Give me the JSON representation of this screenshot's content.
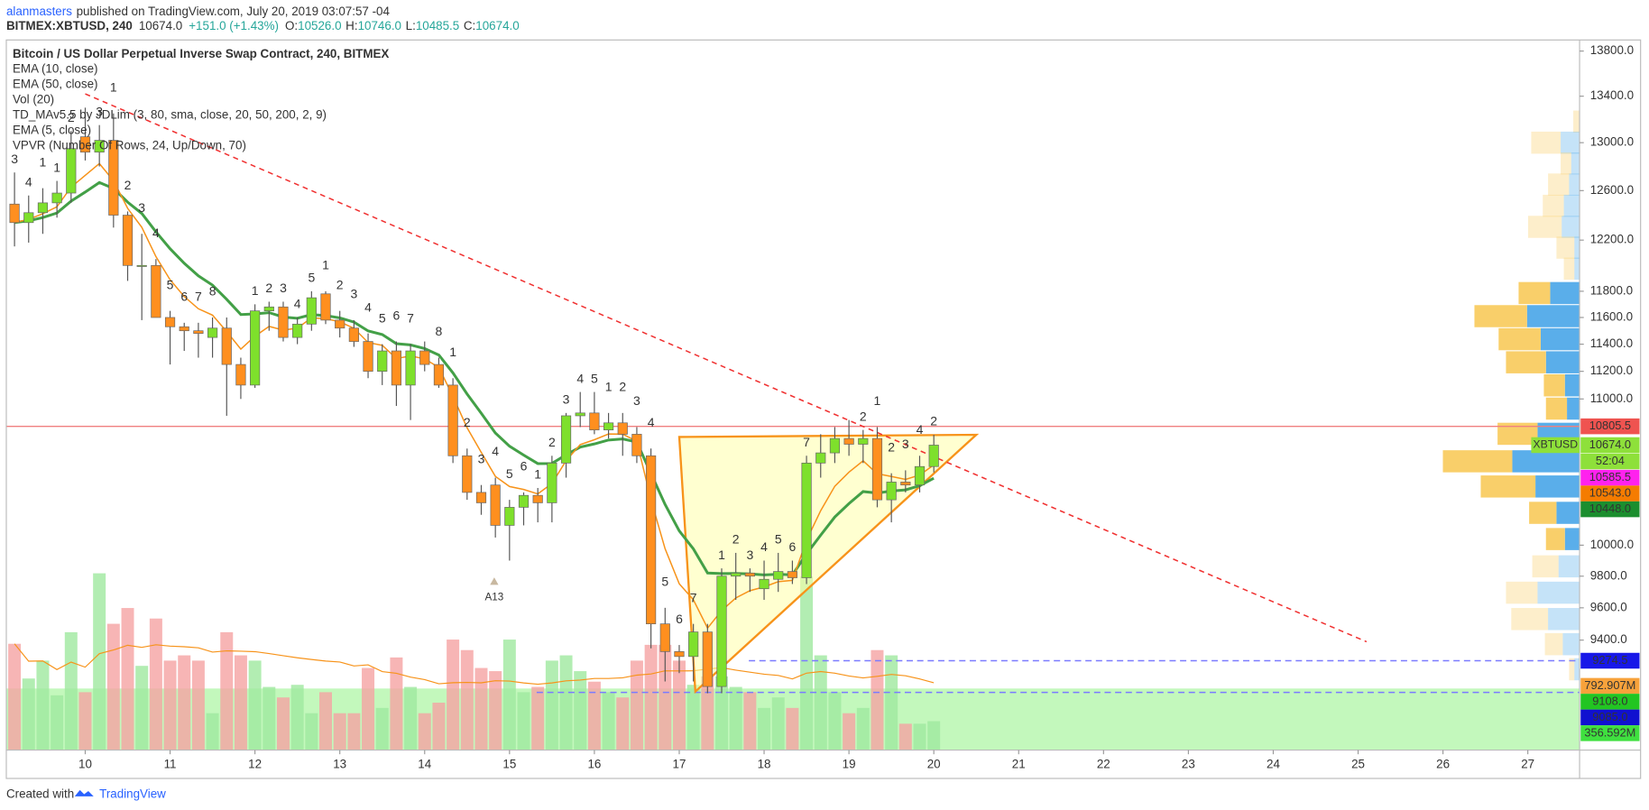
{
  "header": {
    "author": "alanmasters",
    "published": "published on TradingView.com, July 20, 2019 03:07:57 -04",
    "symbol": "BITMEX:XBTUSD, 240",
    "last": "10674.0",
    "change": "+151.0 (+1.43%)",
    "ohlc": [
      {
        "key": "O:",
        "value": "10526.0"
      },
      {
        "key": "H:",
        "value": "10746.0"
      },
      {
        "key": "L:",
        "value": "10485.5"
      },
      {
        "key": "C:",
        "value": "10674.0"
      }
    ]
  },
  "footer": {
    "created": "Created with",
    "brand": "TradingView"
  },
  "chart_data": {
    "type": "candlestick",
    "title": "Bitcoin / US Dollar Perpetual Inverse Swap Contract, 240, BITMEX",
    "indicators": [
      "EMA (10, close)",
      "EMA (50, close)",
      "Vol (20)",
      "TD_MAv5.5 by JDLim (3, 80, sma, close, 20, 50, 200, 2, 9)",
      "EMA (5, close)",
      "VPVR (Number Of Rows, 24, Up/Down, 70)"
    ],
    "x": [
      9.1667,
      9.3333,
      9.5,
      9.6667,
      9.8333,
      10,
      10.1667,
      10.3333,
      10.5,
      10.6667,
      10.8333,
      11,
      11.1667,
      11.3333,
      11.5,
      11.6667,
      11.8333,
      12,
      12.1667,
      12.3333,
      12.5,
      12.6667,
      12.8333,
      13,
      13.1667,
      13.3333,
      13.5,
      13.6667,
      13.8333,
      14,
      14.1667,
      14.3333,
      14.5,
      14.6667,
      14.8333,
      15,
      15.1667,
      15.3333,
      15.5,
      15.6667,
      15.8333,
      16,
      16.1667,
      16.3333,
      16.5,
      16.6667,
      16.8333,
      17,
      17.1667,
      17.3333,
      17.5,
      17.6667,
      17.8333,
      18,
      18.1667,
      18.3333,
      18.5,
      18.6667,
      18.8333,
      19,
      19.1667,
      19.3333,
      19.5,
      19.6667,
      19.8333,
      20
    ],
    "open": [
      12490,
      12340,
      12420,
      12500,
      12580,
      13050,
      12920,
      13020,
      12400,
      12000,
      12000,
      11600,
      11530,
      11500,
      11450,
      11520,
      11250,
      11100,
      11650,
      11680,
      11450,
      11550,
      11780,
      11580,
      11520,
      11420,
      11200,
      11350,
      11100,
      11350,
      11250,
      11100,
      10600,
      10350,
      10400,
      10130,
      10250,
      10330,
      10280,
      10550,
      10880,
      10900,
      10780,
      10830,
      10750,
      10600,
      9500,
      9330,
      9300,
      9450,
      9120,
      9800,
      9820,
      9720,
      9780,
      9830,
      9790,
      10550,
      10620,
      10720,
      10680,
      10720,
      10300,
      10420,
      10400,
      10526
    ],
    "high": [
      12750,
      12560,
      12620,
      12680,
      13100,
      13300,
      13150,
      13250,
      12430,
      12250,
      12050,
      11650,
      11560,
      11560,
      11600,
      11600,
      11300,
      11700,
      11720,
      11720,
      11600,
      11800,
      11800,
      11650,
      11580,
      11480,
      11400,
      11420,
      11400,
      11420,
      11300,
      11150,
      10650,
      10400,
      10450,
      10300,
      10350,
      10380,
      10600,
      10900,
      11050,
      11050,
      10900,
      10900,
      10800,
      10650,
      9600,
      9370,
      9500,
      9500,
      9850,
      9950,
      9850,
      9900,
      9950,
      9900,
      10600,
      10750,
      10800,
      10850,
      10780,
      10800,
      10480,
      10500,
      10600,
      10746
    ],
    "low": [
      12150,
      12180,
      12250,
      12380,
      12500,
      12850,
      12800,
      12300,
      11880,
      11580,
      11650,
      11250,
      11350,
      11300,
      11300,
      10880,
      11000,
      11080,
      11500,
      11420,
      11400,
      11500,
      11550,
      11450,
      11380,
      11150,
      11100,
      10950,
      10850,
      11200,
      11080,
      10550,
      10300,
      10200,
      10050,
      9900,
      10130,
      10150,
      10150,
      10450,
      10800,
      10750,
      10720,
      10600,
      10550,
      9350,
      9150,
      9200,
      9150,
      9080,
      9080,
      9650,
      9700,
      9650,
      9700,
      9750,
      9750,
      10450,
      10550,
      10600,
      10550,
      10250,
      10150,
      10350,
      10350,
      10485.5
    ],
    "close": [
      12340,
      12420,
      12500,
      12580,
      12950,
      12920,
      13020,
      12400,
      12000,
      12000,
      11600,
      11530,
      11500,
      11480,
      11520,
      11250,
      11100,
      11650,
      11680,
      11450,
      11550,
      11750,
      11580,
      11520,
      11420,
      11200,
      11350,
      11100,
      11350,
      11250,
      11100,
      10600,
      10350,
      10280,
      10130,
      10250,
      10330,
      10280,
      10550,
      10880,
      10900,
      10780,
      10830,
      10750,
      10600,
      9500,
      9330,
      9300,
      9450,
      9120,
      9800,
      9820,
      9800,
      9780,
      9830,
      9790,
      10550,
      10620,
      10720,
      10680,
      10720,
      10300,
      10420,
      10400,
      10526,
      10674
    ],
    "volume": [
      1313,
      884,
      1105,
      676,
      1456,
      715,
      2184,
      1560,
      1755,
      1040,
      1625,
      1105,
      1170,
      1105,
      455,
      1456,
      1170,
      1105,
      780,
      650,
      806,
      455,
      715,
      455,
      455,
      1014,
      520,
      1144,
      780,
      455,
      585,
      1365,
      1235,
      1014,
      975,
      1365,
      715,
      780,
      1105,
      1170,
      975,
      845,
      715,
      650,
      1105,
      1300,
      1300,
      1105,
      806,
      910,
      910,
      780,
      715,
      520,
      650,
      520,
      2145,
      1170,
      715,
      455,
      520,
      1235,
      1170,
      325,
      325,
      356.592
    ],
    "td_up": [
      3,
      4,
      null,
      1,
      2,
      null,
      3,
      null,
      null,
      null,
      null,
      null,
      null,
      null,
      null,
      null,
      null,
      1,
      2,
      3,
      4,
      5,
      null,
      null,
      null,
      null,
      null,
      null,
      null,
      null,
      null,
      null,
      null,
      null,
      null,
      null,
      null,
      1,
      2,
      3,
      4,
      5,
      null,
      null,
      null,
      null,
      null,
      null,
      null,
      null,
      1,
      2,
      3,
      4,
      5,
      6,
      7,
      null,
      null,
      null,
      2,
      null,
      null,
      null,
      null,
      2
    ],
    "td_down": [
      null,
      null,
      1,
      null,
      null,
      null,
      null,
      1,
      2,
      3,
      4,
      5,
      6,
      7,
      8,
      null,
      null,
      null,
      null,
      null,
      null,
      null,
      1,
      2,
      3,
      4,
      5,
      6,
      7,
      null,
      8,
      1,
      2,
      3,
      4,
      5,
      6,
      null,
      null,
      null,
      null,
      null,
      1,
      2,
      3,
      4,
      5,
      6,
      7,
      null,
      null,
      null,
      null,
      null,
      null,
      null,
      null,
      null,
      null,
      null,
      null,
      1,
      2,
      3,
      4,
      null
    ],
    "up_color": "#7ee02c",
    "down_color": "#ff8f1f",
    "td_up_color": "#4caf50",
    "td_down_color": "#f06060",
    "volume_colors": {
      "up": "#9fe89f",
      "down": "#f5a3a3"
    },
    "ema_lines": [
      {
        "period": 10,
        "color": "#43a047"
      },
      {
        "period": 5,
        "color": "#f7931a"
      }
    ],
    "volume_ma": {
      "period": 20,
      "color": "#f7931a"
    },
    "xlim": [
      9.07,
      27.61
    ],
    "xticks": [
      10,
      11,
      12,
      13,
      14,
      15,
      16,
      17,
      18,
      19,
      20,
      21,
      22,
      23,
      24,
      25,
      26,
      27
    ],
    "ylim": [
      8750,
      13900
    ],
    "log_scale": true,
    "grid": false,
    "yticks": [
      {
        "value": 9400,
        "label": "9400.0"
      },
      {
        "value": 9600,
        "label": "9600.0"
      },
      {
        "value": 9800,
        "label": "9800.0"
      },
      {
        "value": 10000,
        "label": "10000.0"
      },
      {
        "value": 11000,
        "label": "11000.0"
      },
      {
        "value": 11200,
        "label": "11200.0"
      },
      {
        "value": 11400,
        "label": "11400.0"
      },
      {
        "value": 11600,
        "label": "11600.0"
      },
      {
        "value": 11800,
        "label": "11800.0"
      },
      {
        "value": 12200,
        "label": "12200.0"
      },
      {
        "value": 12600,
        "label": "12600.0"
      },
      {
        "value": 13000,
        "label": "13000.0"
      },
      {
        "value": 13400,
        "label": "13400.0"
      },
      {
        "value": 13800,
        "label": "13800.0"
      }
    ],
    "price_labels": [
      {
        "value": 10805.5,
        "color": "#ef5350",
        "text_color": "#ffffff"
      },
      {
        "value": 10674,
        "label": "10674.0",
        "color": "#8ee03a",
        "text_color": "#000000",
        "tag": "XBTUSD",
        "countdown": "52:04"
      },
      {
        "value": 10585.5,
        "color": "#ff22ee",
        "text_color": "#ffffff"
      },
      {
        "value": 10543,
        "label": "10543.0",
        "color": "#f57c00",
        "text_color": "#ffffff"
      },
      {
        "value": 10448,
        "label": "10448.0",
        "color": "#1b8e2e",
        "text_color": "#ffffff"
      },
      {
        "value": 9274.5,
        "color": "#1818e8",
        "text_color": "#ffffff"
      },
      {
        "value": 9108,
        "label": "9108.0",
        "color": "#22c522",
        "text_color": "#ffffff"
      },
      {
        "value": 9085,
        "label": "9085.0",
        "color": "#1010d0",
        "text_color": "#ffffff"
      }
    ],
    "volume_labels": [
      {
        "value": 792.907,
        "label": "792.907M",
        "color": "#f7a23b",
        "text_color": "#ffffff"
      },
      {
        "value": 356.592,
        "label": "356.592M",
        "color": "#3fe03f",
        "text_color": "#000000"
      }
    ],
    "annotations": [
      {
        "text": "A13",
        "x": 14.82,
        "y": 9705
      }
    ],
    "drawings": {
      "trendline": {
        "x": [
          10,
          25.1
        ],
        "y": [
          13420,
          9390
        ],
        "color": "#f03030"
      },
      "triangle": {
        "x": [
          17,
          20.5,
          17.19
        ],
        "y": [
          10731,
          10746,
          9090
        ],
        "color": "#f7931a"
      },
      "hlines": [
        {
          "value": 10805.5,
          "from": 9.07,
          "color": "#f08080",
          "dashed": false
        },
        {
          "value": 9274.5,
          "from": 17.82,
          "color": "#7b7bff",
          "dashed": true
        },
        {
          "value": 9085,
          "from": 15.32,
          "color": "#7b7bff",
          "dashed": true
        }
      ],
      "zone": {
        "value": 9108,
        "color": "#b9f7b0"
      }
    },
    "vpvr": {
      "value_area": [
        9950,
        11900
      ],
      "up_color": "#5aaeea",
      "down_color": "#f9cf6a",
      "rows": [
        {
          "price": 13180,
          "up": 0,
          "down": 6
        },
        {
          "price": 13000,
          "up": 18,
          "down": 28
        },
        {
          "price": 12825,
          "up": 8,
          "down": 10
        },
        {
          "price": 12650,
          "up": 10,
          "down": 20
        },
        {
          "price": 12476,
          "up": 15,
          "down": 20
        },
        {
          "price": 12306,
          "up": 17,
          "down": 32
        },
        {
          "price": 12140,
          "up": 5,
          "down": 17
        },
        {
          "price": 11975,
          "up": 5,
          "down": 10
        },
        {
          "price": 11786,
          "up": 28,
          "down": 30
        },
        {
          "price": 11610,
          "up": 50,
          "down": 50
        },
        {
          "price": 11437,
          "up": 37,
          "down": 40
        },
        {
          "price": 11266,
          "up": 32,
          "down": 38
        },
        {
          "price": 11098,
          "up": 14,
          "down": 20
        },
        {
          "price": 10931,
          "up": 12,
          "down": 20
        },
        {
          "price": 10753,
          "up": 40,
          "down": 38
        },
        {
          "price": 10562,
          "up": 64,
          "down": 66
        },
        {
          "price": 10390,
          "up": 42,
          "down": 52
        },
        {
          "price": 10213,
          "up": 22,
          "down": 26
        },
        {
          "price": 10040,
          "up": 14,
          "down": 18
        },
        {
          "price": 9863,
          "up": 20,
          "down": 25
        },
        {
          "price": 9695,
          "up": 40,
          "down": 30
        },
        {
          "price": 9530,
          "up": 30,
          "down": 35
        },
        {
          "price": 9375,
          "up": 16,
          "down": 17
        },
        {
          "price": 9223,
          "up": 5,
          "down": 5
        }
      ]
    }
  }
}
